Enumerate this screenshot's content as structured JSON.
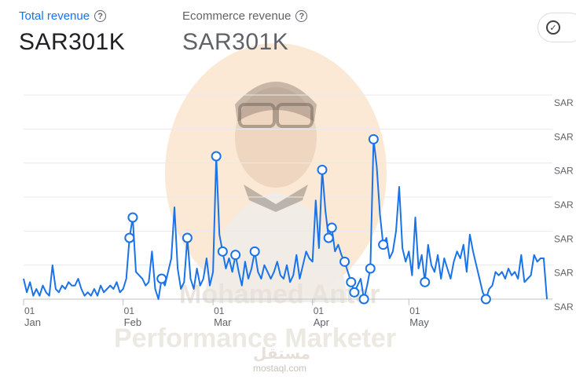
{
  "metrics": [
    {
      "label": "Total revenue",
      "value": "SAR301K",
      "help_icon": "help-circle-icon"
    },
    {
      "label": "Ecommerce revenue",
      "value": "SAR301K",
      "help_icon": "help-circle-icon"
    }
  ],
  "compare_button_icon": "check-circle-icon",
  "watermark": {
    "line1": "Mohamed Anter",
    "line2": "Performance Marketer",
    "logo": "مستقل",
    "site": "mostaql.com"
  },
  "colors": {
    "line": "#1a73e8",
    "accent": "#1a73e8",
    "grid": "#e8eaed"
  },
  "chart_data": {
    "type": "line",
    "y_tick_labels": [
      "SAR",
      "SAR",
      "SAR",
      "SAR",
      "SAR",
      "SAR",
      "SAR"
    ],
    "x_ticks": [
      {
        "day": "01",
        "month": "Jan",
        "index": 0
      },
      {
        "day": "01",
        "month": "Feb",
        "index": 31
      },
      {
        "day": "01",
        "month": "Mar",
        "index": 59
      },
      {
        "day": "01",
        "month": "Apr",
        "index": 90
      },
      {
        "day": "01",
        "month": "May",
        "index": 120
      }
    ],
    "ylim": [
      0,
      6
    ],
    "grid": true,
    "values": [
      0.6,
      0.2,
      0.5,
      0.1,
      0.3,
      0.1,
      0.4,
      0.2,
      0.1,
      1.0,
      0.3,
      0.2,
      0.4,
      0.3,
      0.5,
      0.4,
      0.4,
      0.6,
      0.3,
      0.1,
      0.2,
      0.1,
      0.3,
      0.1,
      0.4,
      0.2,
      0.3,
      0.4,
      0.3,
      0.5,
      0.2,
      0.3,
      0.6,
      1.8,
      2.4,
      0.8,
      0.7,
      0.6,
      0.4,
      0.5,
      1.4,
      0.3,
      0.0,
      0.6,
      0.4,
      0.8,
      1.2,
      2.7,
      0.9,
      0.3,
      0.5,
      1.8,
      0.6,
      0.3,
      0.9,
      0.4,
      0.6,
      1.2,
      0.4,
      0.8,
      4.2,
      1.9,
      1.4,
      0.9,
      1.2,
      0.8,
      1.3,
      0.8,
      0.4,
      1.1,
      0.6,
      0.9,
      1.4,
      0.8,
      0.6,
      1.0,
      0.8,
      0.6,
      0.8,
      1.1,
      0.7,
      0.6,
      1.0,
      0.5,
      0.7,
      1.3,
      0.6,
      1.0,
      1.4,
      1.2,
      1.1,
      2.9,
      1.5,
      3.8,
      2.6,
      1.8,
      2.1,
      1.4,
      1.6,
      1.3,
      1.1,
      0.8,
      0.5,
      0.2,
      0.4,
      0.6,
      0.0,
      0.4,
      0.9,
      4.7,
      3.9,
      2.5,
      1.6,
      1.8,
      1.2,
      1.4,
      2.0,
      3.3,
      1.5,
      1.1,
      1.4,
      0.7,
      2.4,
      0.9,
      1.3,
      0.5,
      1.6,
      1.0,
      0.8,
      1.3,
      0.6,
      1.2,
      0.9,
      0.6,
      1.1,
      1.4,
      1.2,
      1.6,
      0.8,
      1.9,
      1.4,
      1.0,
      0.6,
      0.2,
      0.0,
      0.3,
      0.4,
      0.8,
      0.7,
      0.8,
      0.6,
      0.9,
      0.7,
      0.8,
      0.6,
      1.3,
      0.5,
      0.6,
      0.7,
      1.3,
      1.1,
      1.2,
      1.2,
      0.0
    ],
    "highlighted_indices": [
      33,
      34,
      43,
      51,
      60,
      62,
      66,
      72,
      93,
      95,
      96,
      100,
      102,
      103,
      106,
      108,
      109,
      112,
      125,
      144
    ]
  }
}
